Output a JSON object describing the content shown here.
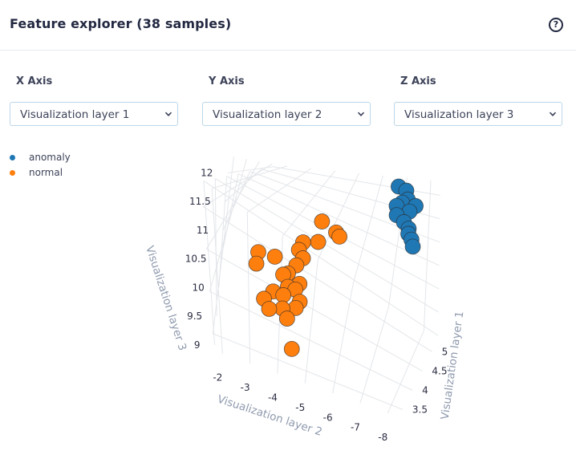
{
  "header": {
    "title": "Feature explorer (38 samples)",
    "help_glyph": "?"
  },
  "controls": {
    "x": {
      "label": "X Axis",
      "value": "Visualization layer 1"
    },
    "y": {
      "label": "Y Axis",
      "value": "Visualization layer 2"
    },
    "z": {
      "label": "Z Axis",
      "value": "Visualization layer 3"
    }
  },
  "icons": {
    "help": "help-circle-icon",
    "dropdown": "chevron-down-icon"
  },
  "chart_data": {
    "type": "scatter",
    "dimensions": 3,
    "axes": {
      "x": {
        "title": "Visualization layer 1",
        "ticks": [
          "3.5",
          "4",
          "4.5",
          "5"
        ],
        "range": [
          3.3,
          5.3
        ]
      },
      "y": {
        "title": "Visualization layer 2",
        "ticks": [
          "-2",
          "-3",
          "-4",
          "-5",
          "-6",
          "-7",
          "-8"
        ],
        "range": [
          -1.7,
          -8.4
        ]
      },
      "z": {
        "title": "Visualization layer 3",
        "ticks": [
          "9",
          "9.5",
          "10",
          "10.5",
          "11",
          "11.5",
          "12"
        ],
        "range": [
          8.9,
          12.3
        ]
      }
    },
    "legend_position": "top-left",
    "series": [
      {
        "name": "anomaly",
        "color": "#1f77b4",
        "points": [
          [
            4.9,
            -7.2,
            12.2
          ],
          [
            5.0,
            -7.4,
            12.1
          ],
          [
            4.8,
            -7.5,
            11.9
          ],
          [
            4.9,
            -7.6,
            11.95
          ],
          [
            4.7,
            -7.4,
            11.85
          ],
          [
            4.8,
            -7.8,
            11.75
          ],
          [
            5.0,
            -7.8,
            11.8
          ],
          [
            4.8,
            -7.3,
            11.6
          ],
          [
            4.7,
            -7.7,
            11.55
          ],
          [
            4.6,
            -8.0,
            11.5
          ],
          [
            4.5,
            -8.1,
            11.45
          ],
          [
            4.55,
            -8.2,
            11.2
          ],
          [
            4.6,
            -8.1,
            11.3
          ]
        ]
      },
      {
        "name": "normal",
        "color": "#ff7f0e",
        "points": [
          [
            4.2,
            -5.0,
            11.3
          ],
          [
            4.3,
            -5.5,
            11.1
          ],
          [
            4.35,
            -5.6,
            11.0
          ],
          [
            4.1,
            -5.0,
            10.9
          ],
          [
            4.0,
            -4.5,
            10.85
          ],
          [
            3.95,
            -4.4,
            10.7
          ],
          [
            3.9,
            -4.6,
            10.6
          ],
          [
            3.85,
            -4.4,
            10.45
          ],
          [
            3.8,
            -3.6,
            10.5
          ],
          [
            3.7,
            -3.0,
            10.55
          ],
          [
            3.6,
            -3.0,
            10.4
          ],
          [
            3.7,
            -4.0,
            10.3
          ],
          [
            3.75,
            -4.6,
            10.2
          ],
          [
            3.65,
            -4.5,
            10.15
          ],
          [
            3.6,
            -4.7,
            10.0
          ],
          [
            3.55,
            -4.1,
            10.05
          ],
          [
            3.6,
            -3.7,
            10.0
          ],
          [
            3.5,
            -4.1,
            9.85
          ],
          [
            3.5,
            -3.4,
            9.9
          ],
          [
            3.55,
            -3.6,
            9.7
          ],
          [
            3.7,
            -4.2,
            10.1
          ],
          [
            3.4,
            -4.5,
            9.3
          ],
          [
            3.45,
            -4.3,
            9.75
          ],
          [
            3.5,
            -4.6,
            9.95
          ],
          [
            3.65,
            -4.2,
            10.4
          ]
        ]
      }
    ]
  }
}
